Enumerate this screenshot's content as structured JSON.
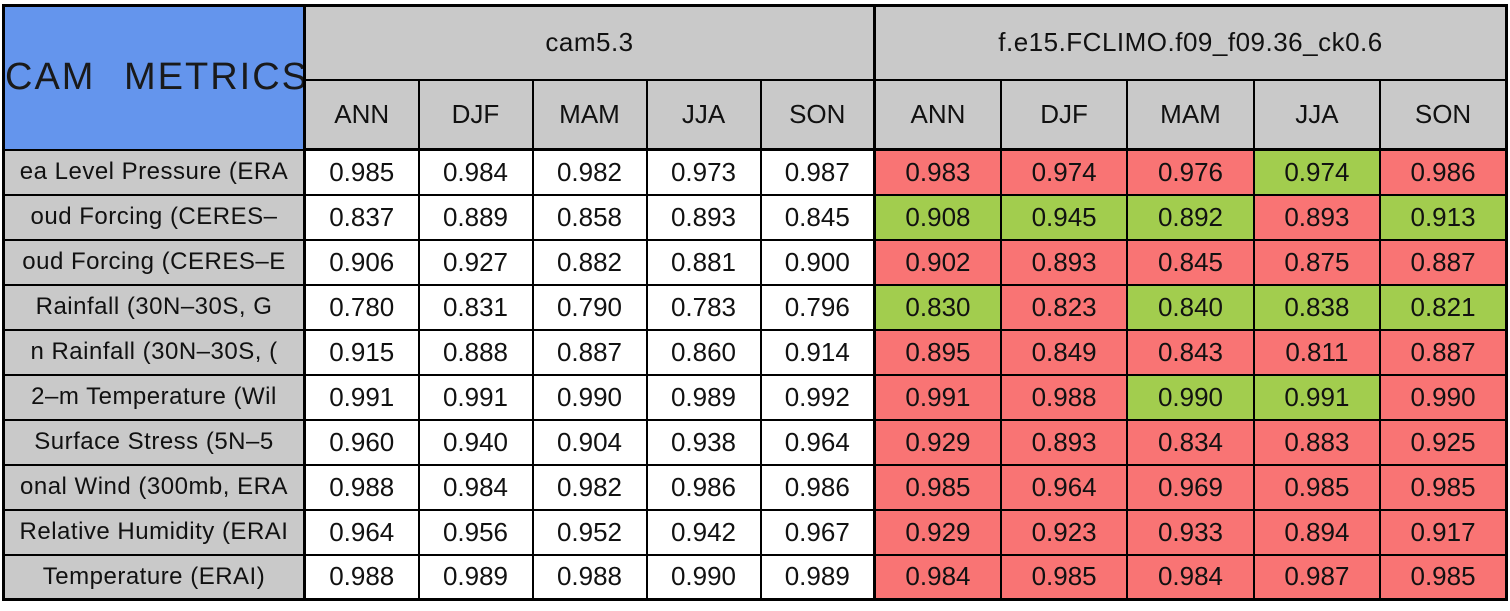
{
  "chart_data": {
    "type": "table",
    "title": "CAM METRICS",
    "colors": {
      "blue": "#6495ED",
      "gray": "#C9C9C9",
      "red": "#F97474",
      "green": "#A2CD4E",
      "white": "#FFFFFF",
      "border": "#000000"
    },
    "groups": [
      {
        "name": "cam5.3",
        "seasons": [
          "ANN",
          "DJF",
          "MAM",
          "JJA",
          "SON"
        ]
      },
      {
        "name": "f.e15.FCLIMO.f09_f09.36_ck0.6",
        "seasons": [
          "ANN",
          "DJF",
          "MAM",
          "JJA",
          "SON"
        ]
      }
    ],
    "rows": [
      {
        "label": "ea Level Pressure (ERA",
        "cam53": [
          "0.985",
          "0.984",
          "0.982",
          "0.973",
          "0.987"
        ],
        "test": [
          "0.983",
          "0.974",
          "0.976",
          "0.974",
          "0.986"
        ],
        "test_colors": [
          "red",
          "red",
          "red",
          "green",
          "red"
        ]
      },
      {
        "label": "oud Forcing (CERES–",
        "cam53": [
          "0.837",
          "0.889",
          "0.858",
          "0.893",
          "0.845"
        ],
        "test": [
          "0.908",
          "0.945",
          "0.892",
          "0.893",
          "0.913"
        ],
        "test_colors": [
          "green",
          "green",
          "green",
          "red",
          "green"
        ]
      },
      {
        "label": "oud Forcing (CERES–E",
        "cam53": [
          "0.906",
          "0.927",
          "0.882",
          "0.881",
          "0.900"
        ],
        "test": [
          "0.902",
          "0.893",
          "0.845",
          "0.875",
          "0.887"
        ],
        "test_colors": [
          "red",
          "red",
          "red",
          "red",
          "red"
        ]
      },
      {
        "label": "Rainfall (30N–30S, G",
        "cam53": [
          "0.780",
          "0.831",
          "0.790",
          "0.783",
          "0.796"
        ],
        "test": [
          "0.830",
          "0.823",
          "0.840",
          "0.838",
          "0.821"
        ],
        "test_colors": [
          "green",
          "red",
          "green",
          "green",
          "green"
        ]
      },
      {
        "label": "n Rainfall (30N–30S, (",
        "cam53": [
          "0.915",
          "0.888",
          "0.887",
          "0.860",
          "0.914"
        ],
        "test": [
          "0.895",
          "0.849",
          "0.843",
          "0.811",
          "0.887"
        ],
        "test_colors": [
          "red",
          "red",
          "red",
          "red",
          "red"
        ]
      },
      {
        "label": "2–m Temperature (Wil",
        "cam53": [
          "0.991",
          "0.991",
          "0.990",
          "0.989",
          "0.992"
        ],
        "test": [
          "0.991",
          "0.988",
          "0.990",
          "0.991",
          "0.990"
        ],
        "test_colors": [
          "red",
          "red",
          "green",
          "green",
          "red"
        ]
      },
      {
        "label": "Surface Stress (5N–5",
        "cam53": [
          "0.960",
          "0.940",
          "0.904",
          "0.938",
          "0.964"
        ],
        "test": [
          "0.929",
          "0.893",
          "0.834",
          "0.883",
          "0.925"
        ],
        "test_colors": [
          "red",
          "red",
          "red",
          "red",
          "red"
        ]
      },
      {
        "label": "onal Wind (300mb, ERA",
        "cam53": [
          "0.988",
          "0.984",
          "0.982",
          "0.986",
          "0.986"
        ],
        "test": [
          "0.985",
          "0.964",
          "0.969",
          "0.985",
          "0.985"
        ],
        "test_colors": [
          "red",
          "red",
          "red",
          "red",
          "red"
        ]
      },
      {
        "label": "Relative Humidity (ERAI",
        "cam53": [
          "0.964",
          "0.956",
          "0.952",
          "0.942",
          "0.967"
        ],
        "test": [
          "0.929",
          "0.923",
          "0.933",
          "0.894",
          "0.917"
        ],
        "test_colors": [
          "red",
          "red",
          "red",
          "red",
          "red"
        ]
      },
      {
        "label": "Temperature (ERAI)",
        "cam53": [
          "0.988",
          "0.989",
          "0.988",
          "0.990",
          "0.989"
        ],
        "test": [
          "0.984",
          "0.985",
          "0.984",
          "0.987",
          "0.985"
        ],
        "test_colors": [
          "red",
          "red",
          "red",
          "red",
          "red"
        ]
      }
    ]
  }
}
